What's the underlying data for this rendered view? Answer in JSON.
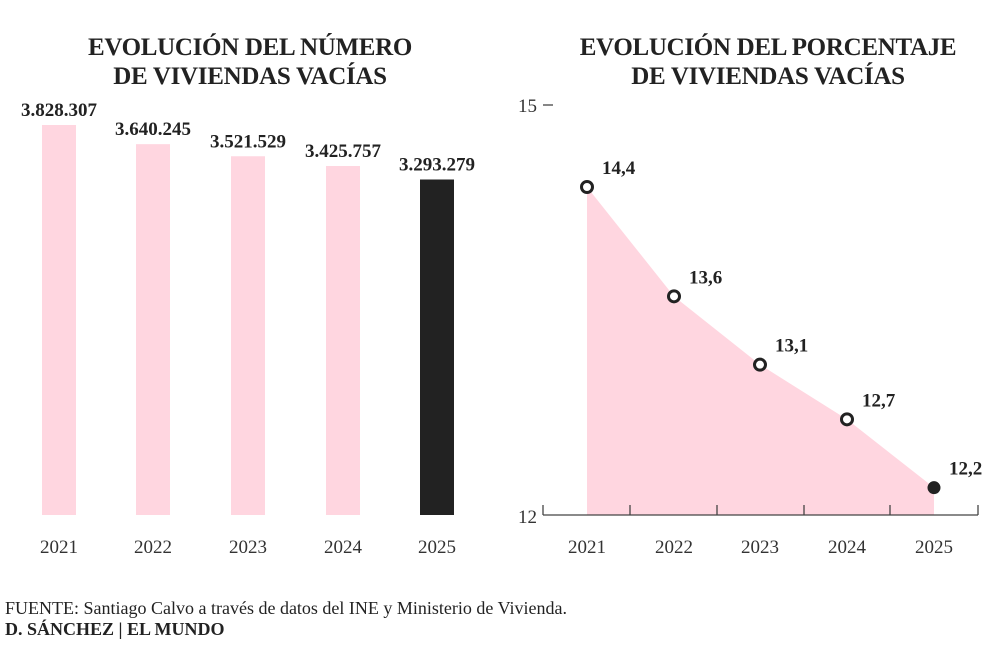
{
  "chart_data": [
    {
      "type": "bar",
      "title": "EVOLUCIÓN DEL NÚMERO DE VIVIENDAS VACÍAS",
      "title_lines": [
        "EVOLUCIÓN DEL NÚMERO",
        "DE VIVIENDAS VACÍAS"
      ],
      "categories": [
        "2021",
        "2022",
        "2023",
        "2024",
        "2025"
      ],
      "values": [
        3828307,
        3640245,
        3521529,
        3425757,
        3293279
      ],
      "data_labels": [
        "3.828.307",
        "3.640.245",
        "3.521.529",
        "3.425.757",
        "3.293.279"
      ],
      "colors": [
        "#ffd6e0",
        "#ffd6e0",
        "#ffd6e0",
        "#ffd6e0",
        "#222222"
      ],
      "ylim": [
        0,
        3828307
      ]
    },
    {
      "type": "area",
      "title": "EVOLUCIÓN DEL PORCENTAJE DE VIVIENDAS VACÍAS",
      "title_lines": [
        "EVOLUCIÓN DEL PORCENTAJE",
        "DE VIVIENDAS VACÍAS"
      ],
      "categories": [
        "2021",
        "2022",
        "2023",
        "2024",
        "2025"
      ],
      "values": [
        14.4,
        13.6,
        13.1,
        12.7,
        12.2
      ],
      "data_labels": [
        "14,4",
        "13,6",
        "13,1",
        "12,7",
        "12,2"
      ],
      "ylim": [
        12,
        15
      ],
      "y_ticks": [
        "12",
        "15"
      ],
      "fill_color": "#ffd6e0",
      "highlight_color": "#222222"
    }
  ],
  "footer": {
    "source": "FUENTE: Santiago Calvo a través de datos del INE y Ministerio de Vivienda.",
    "credit": "D. SÁNCHEZ | EL MUNDO"
  }
}
